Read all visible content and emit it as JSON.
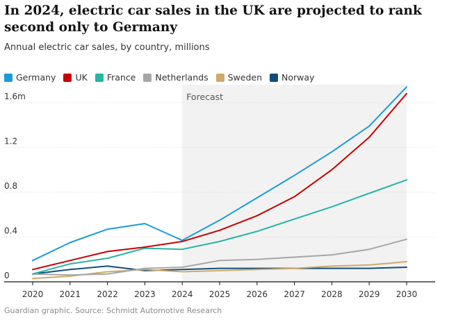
{
  "header": {
    "title": "In 2024, electric car sales in the UK are projected to rank second only to Germany",
    "subtitle": "Annual electric car sales, by country, millions"
  },
  "footer": {
    "source": "Guardian graphic. Source: Schmidt Automotive Research"
  },
  "chart_data": {
    "type": "line",
    "title": "In 2024, electric car sales in the UK are projected to rank second only to Germany",
    "subtitle": "Annual electric car sales, by country, millions",
    "x": [
      2020,
      2021,
      2022,
      2023,
      2024,
      2025,
      2026,
      2027,
      2028,
      2029,
      2030
    ],
    "x_tick_labels": [
      "2020",
      "2021",
      "2022",
      "2023",
      "2024",
      "2025",
      "2026",
      "2027",
      "2028",
      "2029",
      "2030"
    ],
    "ylim": [
      0,
      1.76
    ],
    "y_ticks": [
      0,
      0.4,
      0.8,
      1.2,
      1.6
    ],
    "y_tick_labels": [
      "0",
      "0.4",
      "0.8",
      "1.2",
      "1.6m"
    ],
    "grid": true,
    "legend_position": "top-left",
    "forecast": {
      "label": "Forecast",
      "from": 2024,
      "to": 2030
    },
    "series": [
      {
        "name": "Germany",
        "color": "#1a9bd7",
        "values": [
          0.19,
          0.35,
          0.47,
          0.52,
          0.37,
          0.55,
          0.75,
          0.95,
          1.16,
          1.39,
          1.74
        ]
      },
      {
        "name": "UK",
        "color": "#c70000",
        "values": [
          0.11,
          0.19,
          0.27,
          0.31,
          0.36,
          0.46,
          0.59,
          0.76,
          1.0,
          1.29,
          1.68
        ]
      },
      {
        "name": "France",
        "color": "#27b3a6",
        "values": [
          0.07,
          0.16,
          0.21,
          0.3,
          0.29,
          0.36,
          0.45,
          0.56,
          0.67,
          0.79,
          0.91
        ]
      },
      {
        "name": "Netherlands",
        "color": "#a7a7a7",
        "values": [
          0.07,
          0.06,
          0.07,
          0.12,
          0.13,
          0.19,
          0.2,
          0.22,
          0.24,
          0.29,
          0.38
        ]
      },
      {
        "name": "Sweden",
        "color": "#cfa96b",
        "values": [
          0.03,
          0.05,
          0.09,
          0.11,
          0.09,
          0.1,
          0.11,
          0.12,
          0.14,
          0.15,
          0.18
        ]
      },
      {
        "name": "Norway",
        "color": "#0f4e79",
        "values": [
          0.07,
          0.11,
          0.14,
          0.1,
          0.11,
          0.12,
          0.12,
          0.12,
          0.12,
          0.12,
          0.13
        ]
      }
    ]
  }
}
